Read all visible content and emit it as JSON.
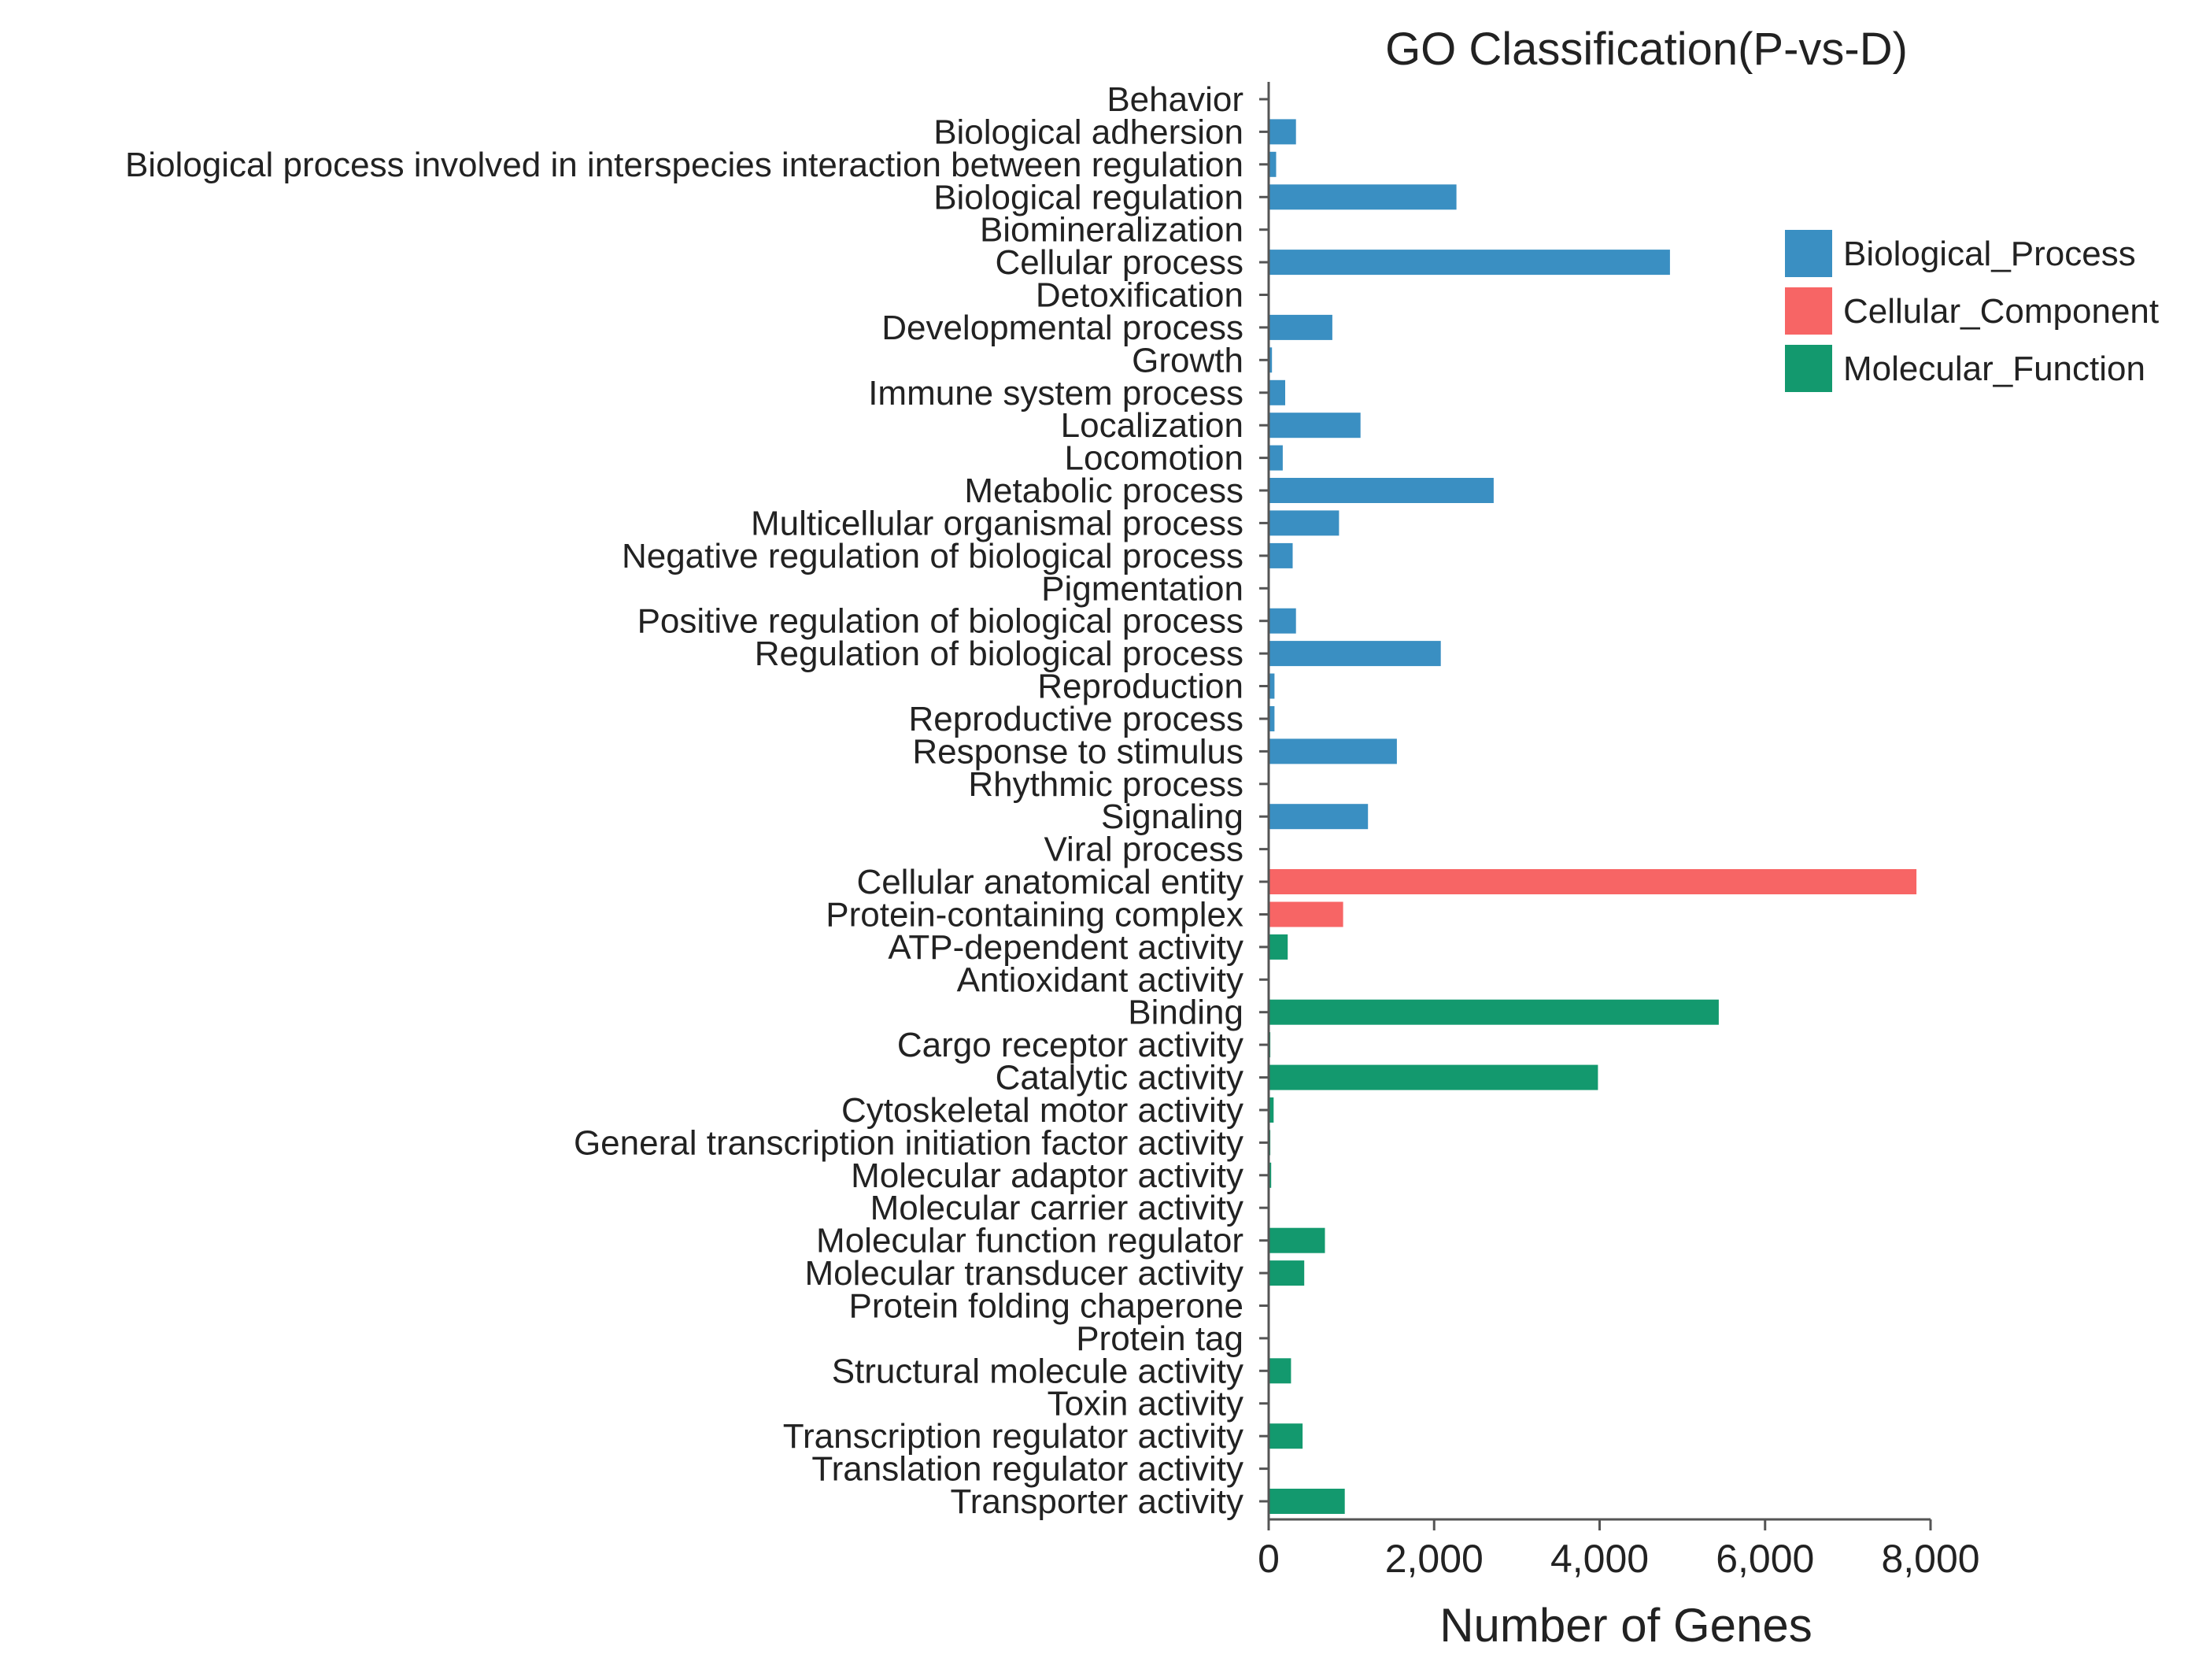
{
  "chart_data": {
    "type": "bar",
    "orientation": "horizontal",
    "title": "GO Classification(P-vs-D)",
    "xlabel": "Number of Genes",
    "ylabel": "",
    "xlim": [
      0,
      8000
    ],
    "xticks": [
      0,
      2000,
      4000,
      6000,
      8000
    ],
    "xtick_labels": [
      "0",
      "2,000",
      "4,000",
      "6,000",
      "8,000"
    ],
    "grid": false,
    "legend_position": "top-right",
    "legend": [
      {
        "name": "Biological_Process",
        "color": "#3a8fc2"
      },
      {
        "name": "Cellular_Component",
        "color": "#f76565"
      },
      {
        "name": "Molecular_Function",
        "color": "#13996e"
      }
    ],
    "categories": [
      {
        "label": "Behavior",
        "value": 10,
        "series": "Biological_Process"
      },
      {
        "label": "Biological adhersion",
        "value": 330,
        "series": "Biological_Process"
      },
      {
        "label": "Biological process involved in interspecies interaction between regulation",
        "value": 90,
        "series": "Biological_Process"
      },
      {
        "label": "Biological regulation",
        "value": 2270,
        "series": "Biological_Process"
      },
      {
        "label": "Biomineralization",
        "value": 10,
        "series": "Biological_Process"
      },
      {
        "label": "Cellular process",
        "value": 4850,
        "series": "Biological_Process"
      },
      {
        "label": "Detoxification",
        "value": 10,
        "series": "Biological_Process"
      },
      {
        "label": "Developmental process",
        "value": 770,
        "series": "Biological_Process"
      },
      {
        "label": "Growth",
        "value": 40,
        "series": "Biological_Process"
      },
      {
        "label": "Immune  system process",
        "value": 200,
        "series": "Biological_Process"
      },
      {
        "label": "Localization",
        "value": 1110,
        "series": "Biological_Process"
      },
      {
        "label": "Locomotion",
        "value": 170,
        "series": "Biological_Process"
      },
      {
        "label": "Metabolic process",
        "value": 2720,
        "series": "Biological_Process"
      },
      {
        "label": "Multicellular  organismal process",
        "value": 850,
        "series": "Biological_Process"
      },
      {
        "label": "Negative regulation of biological process",
        "value": 290,
        "series": "Biological_Process"
      },
      {
        "label": "Pigmentation",
        "value": 10,
        "series": "Biological_Process"
      },
      {
        "label": "Positive regulation of biological process",
        "value": 330,
        "series": "Biological_Process"
      },
      {
        "label": "Regulation of biological process",
        "value": 2080,
        "series": "Biological_Process"
      },
      {
        "label": "Reproduction",
        "value": 70,
        "series": "Biological_Process"
      },
      {
        "label": "Reproductive process",
        "value": 70,
        "series": "Biological_Process"
      },
      {
        "label": "Response to stimulus",
        "value": 1550,
        "series": "Biological_Process"
      },
      {
        "label": "Rhythmic process",
        "value": 10,
        "series": "Biological_Process"
      },
      {
        "label": "Signaling",
        "value": 1200,
        "series": "Biological_Process"
      },
      {
        "label": "Viral process",
        "value": 10,
        "series": "Biological_Process"
      },
      {
        "label": "Cellular anatomical entity",
        "value": 7830,
        "series": "Cellular_Component"
      },
      {
        "label": "Protein-containing complex",
        "value": 900,
        "series": "Cellular_Component"
      },
      {
        "label": "ATP-dependent  activity",
        "value": 230,
        "series": "Molecular_Function"
      },
      {
        "label": "Antioxidant activity",
        "value": 10,
        "series": "Molecular_Function"
      },
      {
        "label": "Binding",
        "value": 5440,
        "series": "Molecular_Function"
      },
      {
        "label": "Cargo receptor activity",
        "value": 20,
        "series": "Molecular_Function"
      },
      {
        "label": "Catalytic activity",
        "value": 3980,
        "series": "Molecular_Function"
      },
      {
        "label": "Cytoskeletal motor activity",
        "value": 60,
        "series": "Molecular_Function"
      },
      {
        "label": "General transcription initiation factor activity",
        "value": 20,
        "series": "Molecular_Function"
      },
      {
        "label": "Molecular adaptor activity",
        "value": 30,
        "series": "Molecular_Function"
      },
      {
        "label": "Molecular carrier activity",
        "value": 10,
        "series": "Molecular_Function"
      },
      {
        "label": "Molecular function regulator",
        "value": 680,
        "series": "Molecular_Function"
      },
      {
        "label": "Molecular transducer activity",
        "value": 430,
        "series": "Molecular_Function"
      },
      {
        "label": "Protein folding chaperone",
        "value": 10,
        "series": "Molecular_Function"
      },
      {
        "label": "Protein tag",
        "value": 10,
        "series": "Molecular_Function"
      },
      {
        "label": "Structural molecule activity",
        "value": 270,
        "series": "Molecular_Function"
      },
      {
        "label": "Toxin activity",
        "value": 10,
        "series": "Molecular_Function"
      },
      {
        "label": "Transcription regulator activity",
        "value": 410,
        "series": "Molecular_Function"
      },
      {
        "label": "Translation regulator activity",
        "value": 10,
        "series": "Molecular_Function"
      },
      {
        "label": "Transporter activity",
        "value": 920,
        "series": "Molecular_Function"
      }
    ]
  }
}
